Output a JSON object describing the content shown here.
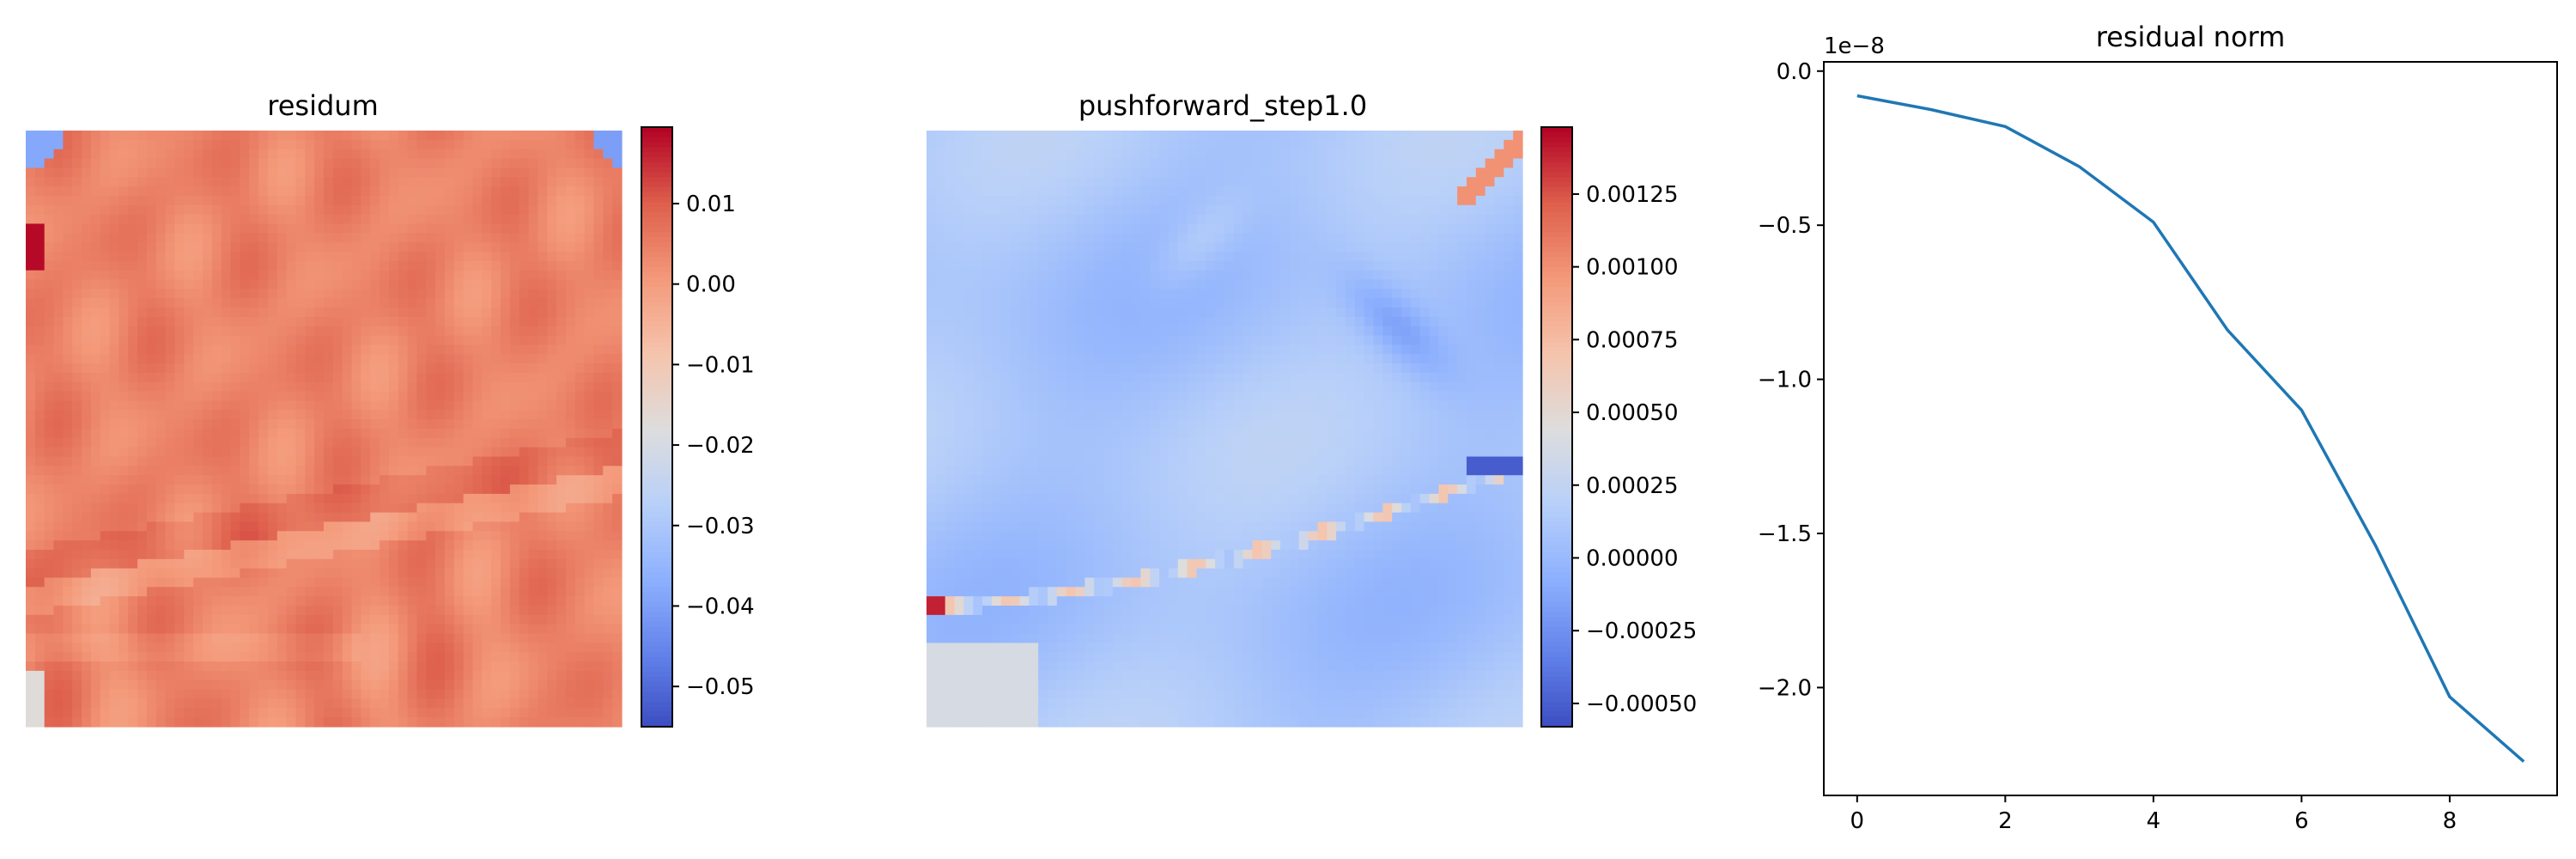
{
  "chart_data": [
    {
      "type": "heatmap",
      "title": "residum",
      "colormap": "coolwarm",
      "colorbar": {
        "vmin": -0.055,
        "vmax": 0.0195,
        "ticks": [
          {
            "value": 0.01,
            "label": "0.01"
          },
          {
            "value": 0.0,
            "label": "0.00"
          },
          {
            "value": -0.01,
            "label": "−0.01"
          },
          {
            "value": -0.02,
            "label": "−0.02"
          },
          {
            "value": -0.03,
            "label": "−0.03"
          },
          {
            "value": -0.04,
            "label": "−0.04"
          },
          {
            "value": -0.05,
            "label": "−0.05"
          }
        ]
      },
      "grid_size": [
        64,
        64
      ],
      "base_value": 0.006,
      "features": {
        "interface": "diagonal edge from left edge (~75% height) rising to right edge (~55% height)",
        "corners": "low values (~-0.04) at top-left and top-right corners"
      }
    },
    {
      "type": "heatmap",
      "title": "pushforward_step1.0",
      "colormap": "coolwarm",
      "colorbar": {
        "vmin": -0.00058,
        "vmax": 0.00148,
        "ticks": [
          {
            "value": 0.00125,
            "label": "0.00125"
          },
          {
            "value": 0.001,
            "label": "0.00100"
          },
          {
            "value": 0.00075,
            "label": "0.00075"
          },
          {
            "value": 0.0005,
            "label": "0.00050"
          },
          {
            "value": 0.00025,
            "label": "0.00025"
          },
          {
            "value": 0.0,
            "label": "0.00000"
          },
          {
            "value": -0.00025,
            "label": "−0.00025"
          },
          {
            "value": -0.0005,
            "label": "−0.00050"
          }
        ]
      },
      "grid_size": [
        64,
        64
      ],
      "base_value": 0.0001,
      "features": {
        "interface": "thin line of high values from left edge (~79% height) to right edge (~55% height)",
        "corners": "high values (~0.001) along diagonal at top-right corner"
      }
    },
    {
      "type": "line",
      "title": "residual norm",
      "offset_text": "1e−8",
      "x": [
        0,
        1,
        2,
        3,
        4,
        5,
        6,
        7,
        8,
        9
      ],
      "series": [
        {
          "color": "#1f77b4",
          "values": [
            -0.08,
            -0.125,
            -0.18,
            -0.31,
            -0.49,
            -0.84,
            -1.1,
            -1.54,
            -2.03,
            -2.24
          ]
        }
      ],
      "xlim": [
        -0.45,
        9.45
      ],
      "ylim": [
        -2.35,
        0.03
      ],
      "xticks": [
        {
          "value": 0,
          "label": "0"
        },
        {
          "value": 2,
          "label": "2"
        },
        {
          "value": 4,
          "label": "4"
        },
        {
          "value": 6,
          "label": "6"
        },
        {
          "value": 8,
          "label": "8"
        }
      ],
      "yticks": [
        {
          "value": 0.0,
          "label": "0.0"
        },
        {
          "value": -0.5,
          "label": "−0.5"
        },
        {
          "value": -1.0,
          "label": "−1.0"
        },
        {
          "value": -1.5,
          "label": "−1.5"
        },
        {
          "value": -2.0,
          "label": "−2.0"
        }
      ],
      "grid": false
    }
  ]
}
